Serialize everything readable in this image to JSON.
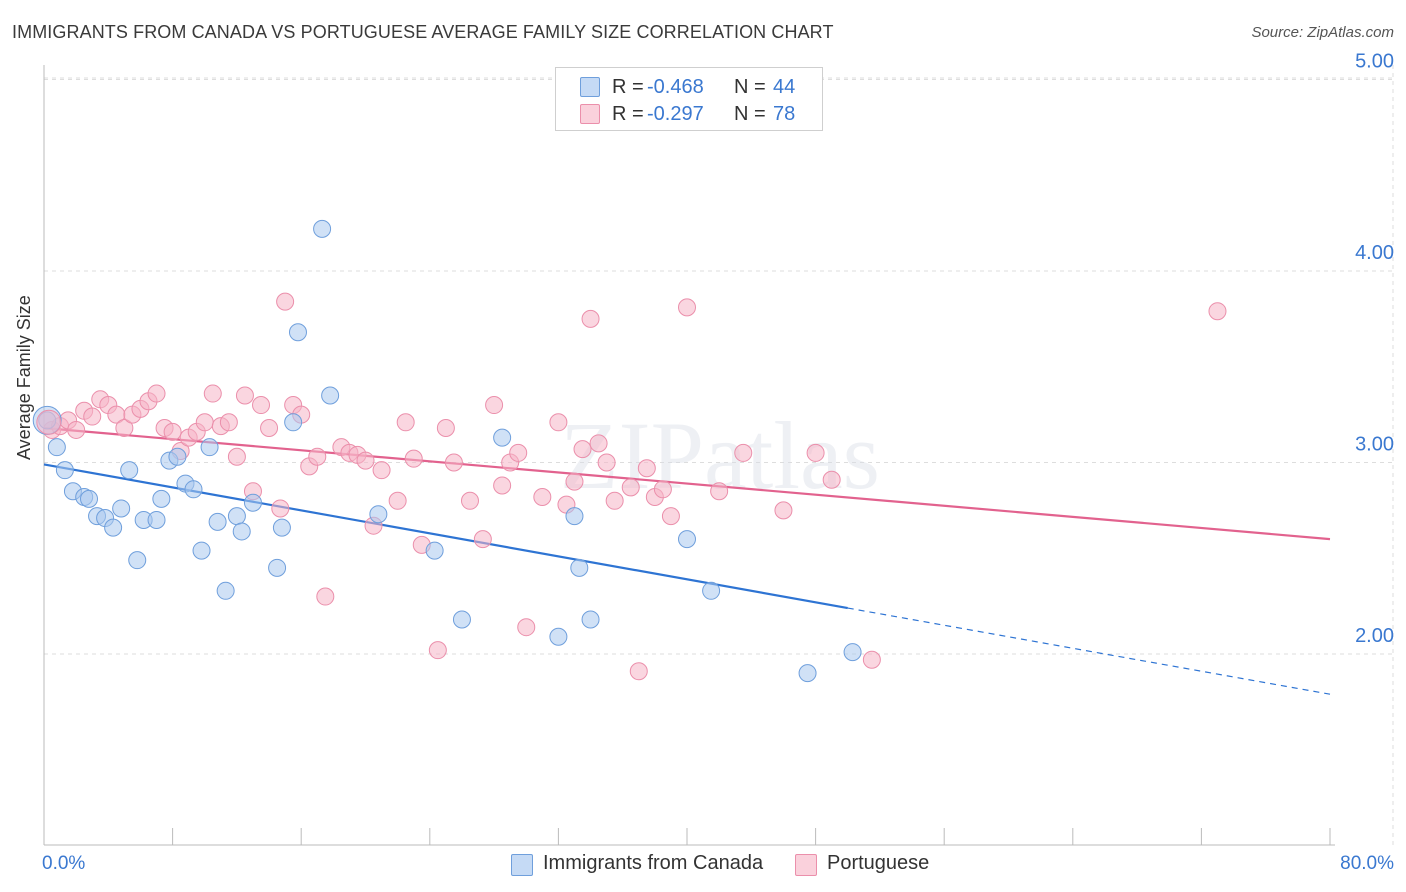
{
  "title": "IMMIGRANTS FROM CANADA VS PORTUGUESE AVERAGE FAMILY SIZE CORRELATION CHART",
  "source": "Source: ZipAtlas.com",
  "watermark": "ZIPatlas",
  "legend": {
    "rows": [
      {
        "r_label": "R =",
        "r_value": "-0.468",
        "n_label": "N =",
        "n_value": "44",
        "color": "#a9c8ee"
      },
      {
        "r_label": "R =",
        "r_value": "-0.297",
        "n_label": "N =",
        "n_value": "78",
        "color": "#f5b4c6"
      }
    ]
  },
  "bottom_legend": [
    {
      "label": "Immigrants from Canada",
      "color": "#a9c8ee"
    },
    {
      "label": "Portuguese",
      "color": "#f5b4c6"
    }
  ],
  "chart_data": {
    "type": "scatter",
    "xlabel": "",
    "ylabel": "Average Family Size",
    "x_tick_labels": [
      "0.0%",
      "80.0%"
    ],
    "y_tick_labels": [
      "2.00",
      "3.00",
      "4.00",
      "5.00"
    ],
    "xlim": [
      0,
      80
    ],
    "ylim": [
      1.0,
      5.1
    ],
    "grid": true,
    "legend_position": "top-center",
    "colors": {
      "blue_fill": "#a9c8ee",
      "blue_stroke": "#6f9fdc",
      "blue_line": "#2e74d3",
      "pink_fill": "#f5b4c6",
      "pink_stroke": "#eb8fab",
      "pink_line": "#e2628e",
      "tick_label": "#3a78d0",
      "grid": "#dddddd"
    },
    "series": [
      {
        "name": "Immigrants from Canada",
        "color": "#a9c8ee",
        "trend": {
          "x": [
            0,
            50,
            80
          ],
          "y": [
            2.99,
            2.24,
            1.79
          ],
          "solid_until": 50
        },
        "points": [
          [
            0.2,
            3.22
          ],
          [
            0.8,
            3.08
          ],
          [
            1.3,
            2.96
          ],
          [
            1.8,
            2.85
          ],
          [
            2.5,
            2.82
          ],
          [
            2.8,
            2.81
          ],
          [
            3.3,
            2.72
          ],
          [
            3.8,
            2.71
          ],
          [
            4.3,
            2.66
          ],
          [
            4.8,
            2.76
          ],
          [
            5.3,
            2.96
          ],
          [
            5.8,
            2.49
          ],
          [
            6.2,
            2.7
          ],
          [
            7.0,
            2.7
          ],
          [
            7.3,
            2.81
          ],
          [
            7.8,
            3.01
          ],
          [
            8.3,
            3.03
          ],
          [
            8.8,
            2.89
          ],
          [
            9.3,
            2.86
          ],
          [
            9.8,
            2.54
          ],
          [
            10.3,
            3.08
          ],
          [
            10.8,
            2.69
          ],
          [
            11.3,
            2.33
          ],
          [
            12.0,
            2.72
          ],
          [
            12.3,
            2.64
          ],
          [
            13.0,
            2.79
          ],
          [
            14.5,
            2.45
          ],
          [
            14.8,
            2.66
          ],
          [
            15.5,
            3.21
          ],
          [
            15.8,
            3.68
          ],
          [
            17.3,
            4.22
          ],
          [
            17.8,
            3.35
          ],
          [
            20.8,
            2.73
          ],
          [
            24.3,
            2.54
          ],
          [
            26.0,
            2.18
          ],
          [
            28.5,
            3.13
          ],
          [
            32.0,
            2.09
          ],
          [
            33.0,
            2.72
          ],
          [
            33.3,
            2.45
          ],
          [
            34.0,
            2.18
          ],
          [
            40.0,
            2.6
          ],
          [
            41.5,
            2.33
          ],
          [
            47.5,
            1.9
          ],
          [
            50.3,
            2.01
          ]
        ]
      },
      {
        "name": "Portuguese",
        "color": "#f5b4c6",
        "trend": {
          "x": [
            0,
            80
          ],
          "y": [
            3.18,
            2.6
          ]
        },
        "points": [
          [
            0.5,
            3.17
          ],
          [
            1.0,
            3.19
          ],
          [
            1.5,
            3.22
          ],
          [
            2.0,
            3.17
          ],
          [
            2.5,
            3.27
          ],
          [
            3.0,
            3.24
          ],
          [
            3.5,
            3.33
          ],
          [
            4.0,
            3.3
          ],
          [
            4.5,
            3.25
          ],
          [
            5.0,
            3.18
          ],
          [
            5.5,
            3.25
          ],
          [
            6.0,
            3.28
          ],
          [
            6.5,
            3.32
          ],
          [
            7.0,
            3.36
          ],
          [
            7.5,
            3.18
          ],
          [
            8.0,
            3.16
          ],
          [
            8.5,
            3.06
          ],
          [
            9.0,
            3.13
          ],
          [
            9.5,
            3.16
          ],
          [
            10.0,
            3.21
          ],
          [
            10.5,
            3.36
          ],
          [
            11.0,
            3.19
          ],
          [
            11.5,
            3.21
          ],
          [
            12.0,
            3.03
          ],
          [
            12.5,
            3.35
          ],
          [
            13.0,
            2.85
          ],
          [
            13.5,
            3.3
          ],
          [
            14.0,
            3.18
          ],
          [
            14.7,
            2.76
          ],
          [
            15.0,
            3.84
          ],
          [
            15.5,
            3.3
          ],
          [
            16.0,
            3.25
          ],
          [
            16.5,
            2.98
          ],
          [
            17.0,
            3.03
          ],
          [
            17.5,
            2.3
          ],
          [
            18.5,
            3.08
          ],
          [
            19.0,
            3.05
          ],
          [
            19.5,
            3.04
          ],
          [
            20.0,
            3.01
          ],
          [
            20.5,
            2.67
          ],
          [
            21.0,
            2.96
          ],
          [
            22.0,
            2.8
          ],
          [
            22.5,
            3.21
          ],
          [
            23.0,
            3.02
          ],
          [
            23.5,
            2.57
          ],
          [
            24.5,
            2.02
          ],
          [
            25.0,
            3.18
          ],
          [
            25.5,
            3.0
          ],
          [
            26.5,
            2.8
          ],
          [
            27.3,
            2.6
          ],
          [
            28.0,
            3.3
          ],
          [
            28.5,
            2.88
          ],
          [
            29.0,
            3.0
          ],
          [
            29.5,
            3.05
          ],
          [
            30.0,
            2.14
          ],
          [
            31.0,
            2.82
          ],
          [
            32.0,
            3.21
          ],
          [
            32.5,
            2.78
          ],
          [
            33.0,
            2.9
          ],
          [
            33.5,
            3.07
          ],
          [
            34.0,
            3.75
          ],
          [
            34.5,
            3.1
          ],
          [
            35.0,
            3.0
          ],
          [
            35.5,
            2.8
          ],
          [
            36.5,
            2.87
          ],
          [
            37.0,
            1.91
          ],
          [
            37.5,
            2.97
          ],
          [
            38.0,
            2.82
          ],
          [
            38.5,
            2.86
          ],
          [
            39.0,
            2.72
          ],
          [
            40.0,
            3.81
          ],
          [
            42.0,
            2.85
          ],
          [
            43.5,
            3.05
          ],
          [
            46.0,
            2.75
          ],
          [
            48.0,
            3.05
          ],
          [
            49.0,
            2.91
          ],
          [
            51.5,
            1.97
          ],
          [
            73.0,
            3.79
          ]
        ]
      }
    ]
  }
}
